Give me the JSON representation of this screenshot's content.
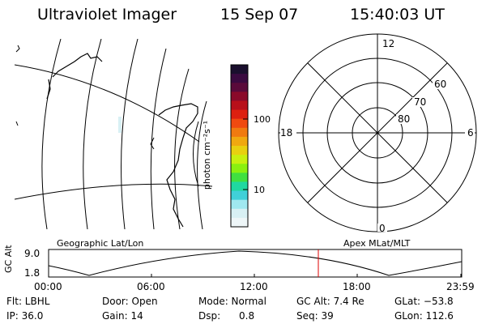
{
  "header": {
    "instrument": "Ultraviolet Imager",
    "date": "15 Sep 07",
    "time": "15:40:03 UT"
  },
  "colorbar": {
    "unit_label": "photon cm⁻²s⁻¹",
    "ticks": [
      "100",
      "10"
    ],
    "colors": [
      "#1a0f2e",
      "#3a0a40",
      "#5a0a3a",
      "#8a0a2a",
      "#b8101a",
      "#dd2010",
      "#f04a10",
      "#f07a10",
      "#f0a810",
      "#e8d010",
      "#c8f010",
      "#8af010",
      "#40e040",
      "#20d8a0",
      "#40d0d8",
      "#a0e8f0",
      "#d8f0f4",
      "#eef6f8"
    ]
  },
  "left_map": {
    "title": "Geographic Lat/Lon"
  },
  "right_map": {
    "title": "Apex MLat/MLT",
    "labels": {
      "top": "12",
      "left": "18",
      "right": "6",
      "bottom": "0"
    },
    "lat_labels": [
      "60",
      "70",
      "80"
    ]
  },
  "orbit": {
    "ylabel": "GC Alt",
    "ytick_top": "9.0",
    "ytick_bottom": "1.8",
    "xticks": [
      "00:00",
      "06:00",
      "12:00",
      "18:00",
      "23:59"
    ],
    "marker_color": "#dd0000"
  },
  "status": {
    "flt": "Flt: LBHL",
    "ip": "IP: 36.0",
    "door": "Door: Open",
    "gain": "Gain: 14",
    "mode": "Mode: Normal",
    "dsp": "Dsp:      0.8",
    "gcalt": "GC Alt: 7.4 Re",
    "seq": "Seq: 39",
    "glat": "GLat: −53.8",
    "glon": "GLon: 112.6"
  }
}
